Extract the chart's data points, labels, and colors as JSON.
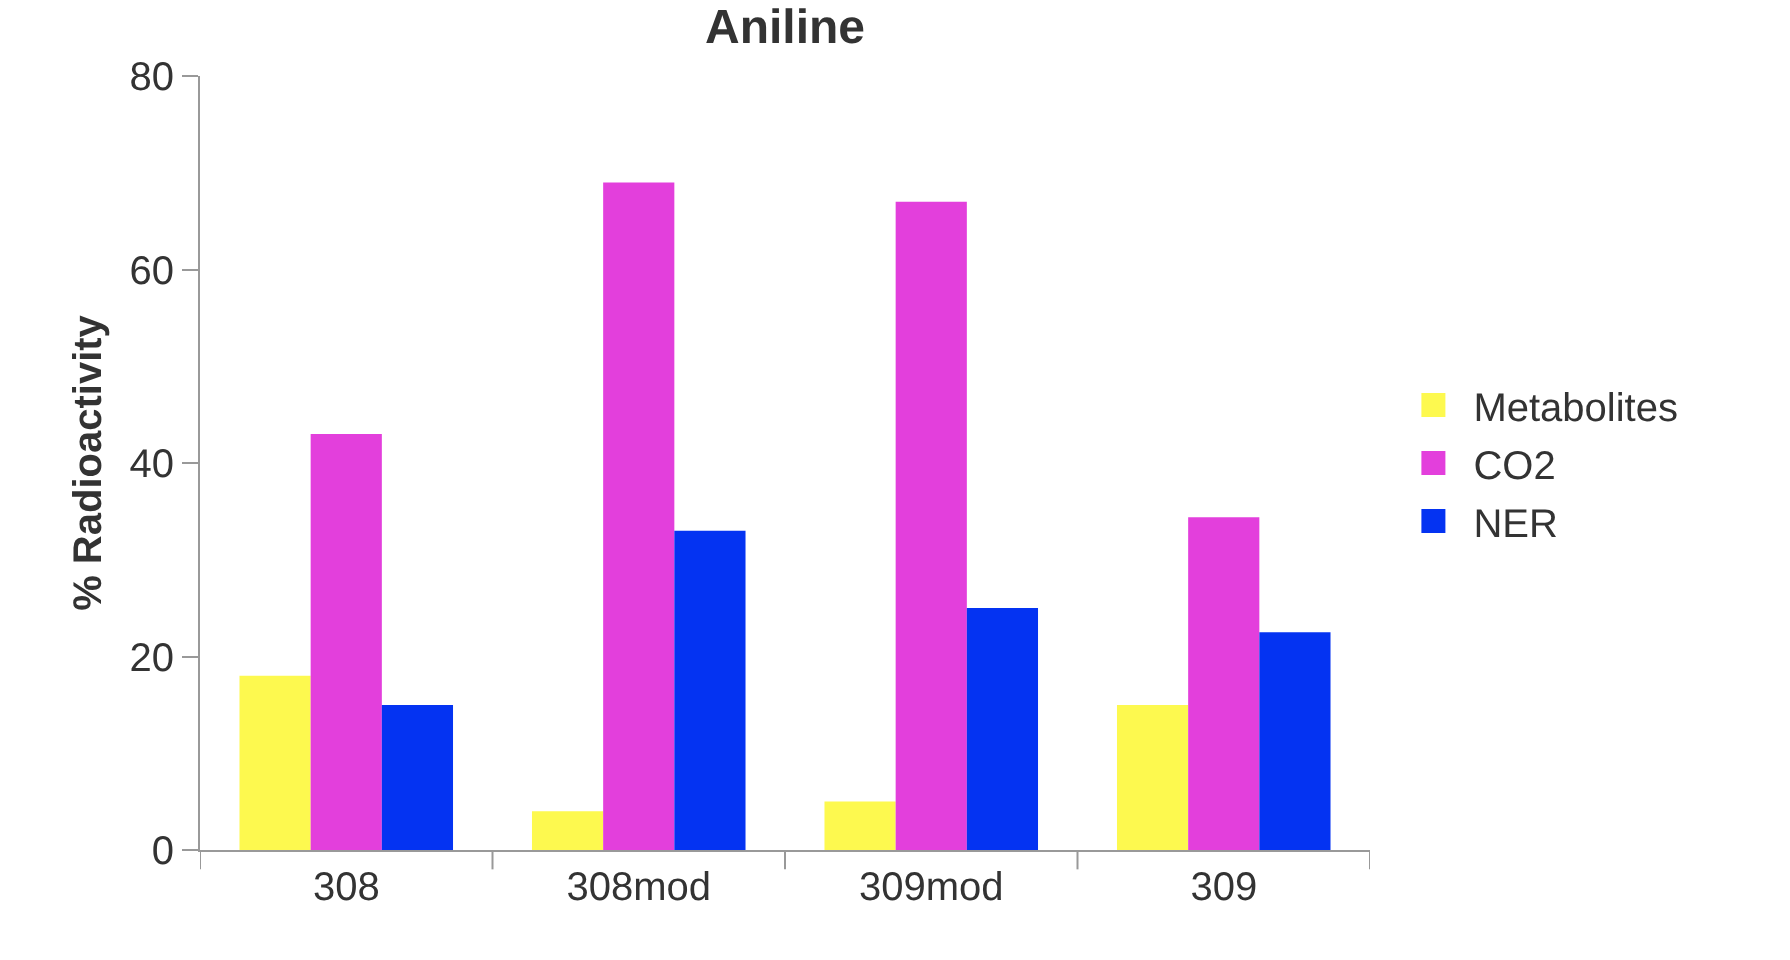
{
  "chart_data": {
    "type": "bar",
    "title": "Aniline",
    "ylabel": "% Radioactivity",
    "categories": [
      "308",
      "308mod",
      "309mod",
      "309"
    ],
    "series": [
      {
        "name": "Metabolites",
        "color": "#fdf94f",
        "values": [
          18,
          4,
          5,
          15
        ]
      },
      {
        "name": "CO2",
        "color": "#e33fdc",
        "values": [
          43,
          69,
          67,
          34.4
        ]
      },
      {
        "name": "NER",
        "color": "#0433f2",
        "values": [
          15,
          33,
          25,
          22.5
        ]
      }
    ],
    "ylim": [
      0,
      80
    ],
    "yticks": [
      0,
      20,
      40,
      60,
      80
    ],
    "grid": false,
    "legend": "right"
  }
}
